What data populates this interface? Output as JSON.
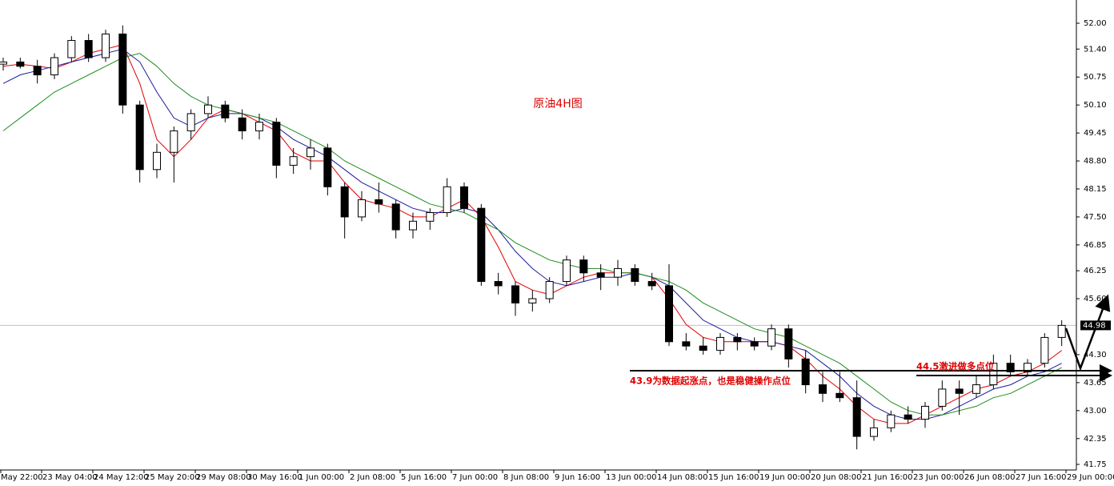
{
  "chart_data": {
    "type": "candlestick",
    "title": "原油4H图",
    "annotations": [
      "44.5激进做多点位",
      "43.9为数据起涨点，也是稳健操作点位"
    ],
    "open": [
      51.05,
      51.1,
      51.0,
      50.8,
      51.2,
      51.6,
      51.2,
      51.75,
      50.1,
      48.6,
      49.0,
      49.5,
      49.9,
      50.1,
      49.8,
      49.5,
      49.7,
      48.7,
      48.9,
      49.1,
      48.2,
      47.5,
      47.9,
      47.8,
      47.2,
      47.4,
      47.6,
      48.2,
      47.7,
      46.0,
      45.9,
      45.5,
      45.6,
      46.0,
      46.5,
      46.2,
      46.1,
      46.3,
      46.0,
      45.9,
      44.6,
      44.5,
      44.4,
      44.7,
      44.6,
      44.5,
      44.9,
      44.2,
      43.6,
      43.4,
      43.3,
      42.4,
      42.6,
      42.9,
      42.8,
      43.1,
      43.5,
      43.4,
      43.6,
      44.1,
      43.9,
      44.1,
      44.7
    ],
    "high": [
      51.2,
      51.2,
      51.15,
      51.3,
      51.7,
      51.75,
      51.85,
      51.95,
      50.2,
      49.2,
      49.6,
      50.0,
      50.3,
      50.2,
      50.0,
      49.9,
      49.8,
      49.1,
      49.3,
      49.2,
      48.3,
      48.1,
      48.3,
      47.9,
      47.6,
      47.7,
      48.4,
      48.3,
      47.8,
      46.2,
      46.0,
      45.8,
      46.1,
      46.6,
      46.6,
      46.4,
      46.5,
      46.4,
      46.2,
      46.4,
      44.8,
      44.7,
      44.8,
      44.8,
      44.7,
      45.0,
      45.0,
      44.4,
      43.9,
      43.9,
      43.7,
      42.8,
      43.0,
      43.1,
      43.2,
      43.7,
      43.7,
      43.8,
      44.3,
      44.3,
      44.2,
      44.8,
      45.1
    ],
    "low": [
      50.9,
      50.95,
      50.6,
      50.7,
      51.1,
      51.1,
      51.1,
      49.9,
      48.3,
      48.4,
      48.3,
      49.3,
      49.8,
      49.7,
      49.3,
      49.3,
      48.4,
      48.5,
      48.6,
      48.0,
      47.0,
      47.4,
      47.6,
      47.0,
      47.0,
      47.2,
      47.5,
      47.6,
      45.9,
      45.7,
      45.2,
      45.3,
      45.5,
      45.9,
      46.0,
      45.8,
      45.9,
      45.9,
      45.8,
      44.5,
      44.4,
      44.3,
      44.3,
      44.4,
      44.4,
      44.4,
      44.0,
      43.4,
      43.2,
      43.2,
      42.1,
      42.3,
      42.5,
      42.7,
      42.6,
      43.0,
      42.9,
      43.3,
      43.5,
      43.8,
      43.8,
      44.0,
      44.5
    ],
    "close": [
      51.1,
      51.0,
      50.8,
      51.2,
      51.6,
      51.2,
      51.75,
      50.1,
      48.6,
      49.0,
      49.5,
      49.9,
      50.1,
      49.8,
      49.5,
      49.7,
      48.7,
      48.9,
      49.1,
      48.2,
      47.5,
      47.9,
      47.8,
      47.2,
      47.4,
      47.6,
      48.2,
      47.7,
      46.0,
      45.9,
      45.5,
      45.6,
      46.0,
      46.5,
      46.2,
      46.1,
      46.3,
      46.0,
      45.9,
      44.6,
      44.5,
      44.4,
      44.7,
      44.6,
      44.5,
      44.9,
      44.2,
      43.6,
      43.4,
      43.3,
      42.4,
      42.6,
      42.9,
      42.8,
      43.1,
      43.5,
      43.4,
      43.6,
      44.1,
      43.9,
      44.1,
      44.7,
      44.98
    ],
    "series": [
      {
        "color": "#e00000",
        "values": [
          51.0,
          51.05,
          51.0,
          50.95,
          51.1,
          51.3,
          51.4,
          51.5,
          50.6,
          49.3,
          48.9,
          49.3,
          49.8,
          50.0,
          49.9,
          49.7,
          49.5,
          49.0,
          48.8,
          48.8,
          48.3,
          47.9,
          47.8,
          47.7,
          47.5,
          47.5,
          47.7,
          47.9,
          47.5,
          46.8,
          46.0,
          45.8,
          45.7,
          45.9,
          46.1,
          46.2,
          46.2,
          46.2,
          46.1,
          45.6,
          45.0,
          44.7,
          44.6,
          44.6,
          44.6,
          44.6,
          44.5,
          44.2,
          43.8,
          43.5,
          43.1,
          42.8,
          42.7,
          42.7,
          42.9,
          43.1,
          43.3,
          43.5,
          43.6,
          43.8,
          43.9,
          44.1,
          44.4
        ]
      },
      {
        "color": "#1a1a9c",
        "values": [
          50.6,
          50.8,
          50.9,
          51.0,
          51.1,
          51.2,
          51.3,
          51.4,
          51.1,
          50.4,
          49.8,
          49.6,
          49.8,
          49.9,
          49.9,
          49.8,
          49.6,
          49.3,
          49.1,
          48.9,
          48.6,
          48.3,
          48.1,
          47.9,
          47.7,
          47.6,
          47.6,
          47.7,
          47.6,
          47.2,
          46.7,
          46.3,
          46.0,
          45.9,
          46.0,
          46.1,
          46.1,
          46.2,
          46.1,
          45.9,
          45.5,
          45.1,
          44.9,
          44.7,
          44.6,
          44.6,
          44.5,
          44.4,
          44.1,
          43.8,
          43.4,
          43.1,
          42.9,
          42.8,
          42.8,
          42.9,
          43.1,
          43.3,
          43.5,
          43.6,
          43.8,
          43.9,
          44.1
        ]
      },
      {
        "color": "#1e8c1e",
        "values": [
          49.5,
          49.8,
          50.1,
          50.4,
          50.6,
          50.8,
          51.0,
          51.2,
          51.3,
          51.0,
          50.6,
          50.3,
          50.1,
          50.0,
          49.9,
          49.8,
          49.7,
          49.5,
          49.3,
          49.1,
          48.8,
          48.6,
          48.4,
          48.2,
          48.0,
          47.8,
          47.7,
          47.6,
          47.4,
          47.2,
          46.9,
          46.7,
          46.5,
          46.4,
          46.3,
          46.3,
          46.2,
          46.2,
          46.1,
          46.0,
          45.8,
          45.5,
          45.3,
          45.1,
          44.9,
          44.8,
          44.7,
          44.5,
          44.3,
          44.1,
          43.8,
          43.5,
          43.2,
          43.0,
          42.9,
          42.9,
          43.0,
          43.1,
          43.3,
          43.4,
          43.6,
          43.8,
          44.0
        ]
      }
    ],
    "last_price": 44.98,
    "ylim": [
      41.62,
      52.54
    ],
    "yticks": [
      {
        "value": 52.0,
        "label": "52.00"
      },
      {
        "value": 51.4,
        "label": "51.40"
      },
      {
        "value": 50.75,
        "label": "50.75"
      },
      {
        "value": 50.1,
        "label": "50.10"
      },
      {
        "value": 49.45,
        "label": "49.45"
      },
      {
        "value": 48.8,
        "label": "48.80"
      },
      {
        "value": 48.15,
        "label": "48.15"
      },
      {
        "value": 47.5,
        "label": "47.50"
      },
      {
        "value": 46.85,
        "label": "46.85"
      },
      {
        "value": 46.25,
        "label": "46.25"
      },
      {
        "value": 45.6,
        "label": "45.60"
      },
      {
        "value": 44.3,
        "label": "44.30"
      },
      {
        "value": 43.65,
        "label": "43.65"
      },
      {
        "value": 43.0,
        "label": "43.00"
      },
      {
        "value": 42.35,
        "label": "42.35"
      },
      {
        "value": 41.75,
        "label": "41.75"
      }
    ],
    "xtick_labels": [
      "May 22:00",
      "23 May 04:00",
      "24 May 12:00",
      "25 May 20:00",
      "29 May 08:00",
      "30 May 16:00",
      "1 Jun 00:00",
      "2 Jun 08:00",
      "5 Jun 16:00",
      "7 Jun 00:00",
      "8 Jun 08:00",
      "9 Jun 16:00",
      "13 Jun 00:00",
      "14 Jun 08:00",
      "15 Jun 16:00",
      "19 Jun 00:00",
      "20 Jun 08:00",
      "21 Jun 16:00",
      "23 Jun 00:00",
      "26 Jun 08:00",
      "27 Jun 16:00",
      "29 Jun 00:00"
    ],
    "bull_color": "#ffffff",
    "bear_color": "#000000"
  }
}
